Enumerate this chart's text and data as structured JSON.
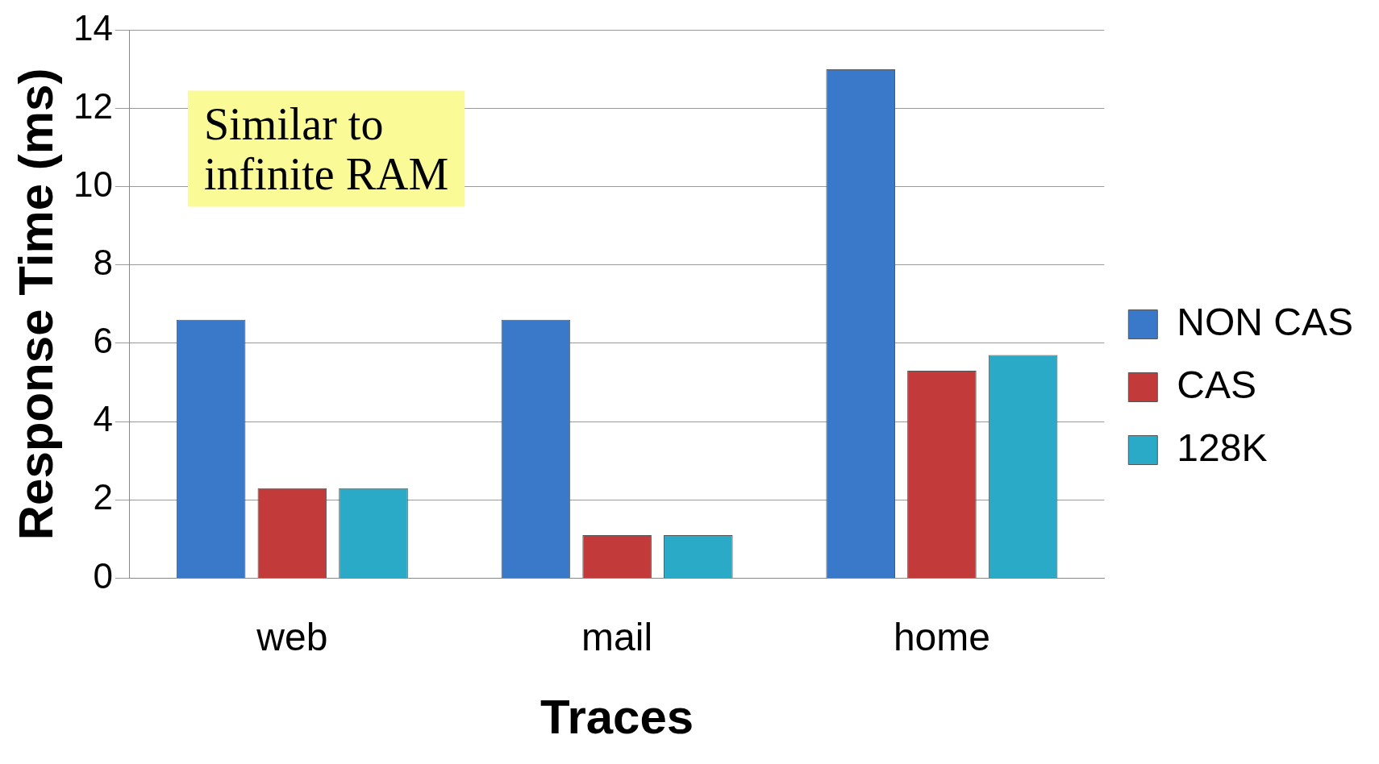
{
  "chart_data": {
    "type": "bar",
    "xlabel": "Traces",
    "ylabel": "Response Time (ms)",
    "categories": [
      "web",
      "mail",
      "home"
    ],
    "series": [
      {
        "name": "NON CAS",
        "color": "#3a78c9",
        "values": [
          6.6,
          6.6,
          13.0
        ]
      },
      {
        "name": "CAS",
        "color": "#c23a3a",
        "values": [
          2.3,
          1.1,
          5.3
        ]
      },
      {
        "name": "128K",
        "color": "#2aaac6",
        "values": [
          2.3,
          1.1,
          5.7
        ]
      }
    ],
    "ylim": [
      0,
      14
    ],
    "yticks": [
      0,
      2,
      4,
      6,
      8,
      10,
      12,
      14
    ],
    "grid": "y",
    "legend": "right",
    "annotations": [
      "Similar to\ninfinite RAM"
    ]
  }
}
